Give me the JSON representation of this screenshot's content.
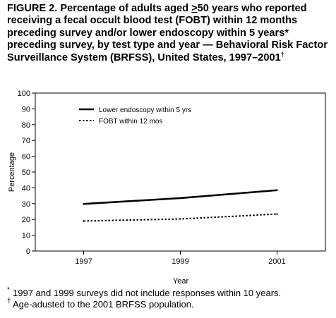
{
  "figure": {
    "title_pre": "FIGURE 2. Percentage of adults aged ",
    "title_ge": ">",
    "title_post": "50 years who reported receiving a fecal occult blood test (FOBT) within 12 months preceding survey and/or lower endoscopy within 5 years* preceding survey, by test type and year — Behavioral Risk Factor Surveillance System (BRFSS), United States, 1997–2001",
    "title_mark": "†",
    "footnotes": [
      {
        "mark": "*",
        "text": "1997 and 1999 surveys did not include responses within 10 years."
      },
      {
        "mark": "†",
        "text": "Age-adusted to the 2001 BRFSS population."
      }
    ]
  },
  "chart_data": {
    "type": "line",
    "x": [
      1997,
      1999,
      2001
    ],
    "xlim": [
      1996,
      2002
    ],
    "xticks": [
      1997,
      1999,
      2001
    ],
    "xlabel": "Year",
    "ylabel": "Percentage",
    "ylim": [
      0,
      100
    ],
    "yticks": [
      0,
      10,
      20,
      30,
      40,
      50,
      60,
      70,
      80,
      90,
      100
    ],
    "grid": false,
    "legend_position": "top-left",
    "series": [
      {
        "name": "Lower endoscopy within 5 yrs",
        "values": [
          29.8,
          33.5,
          38.5
        ],
        "style": "solid",
        "color": "#000000"
      },
      {
        "name": "FOBT within 12 mos",
        "values": [
          19.0,
          20.3,
          23.4
        ],
        "style": "dotted",
        "color": "#000000"
      }
    ]
  }
}
